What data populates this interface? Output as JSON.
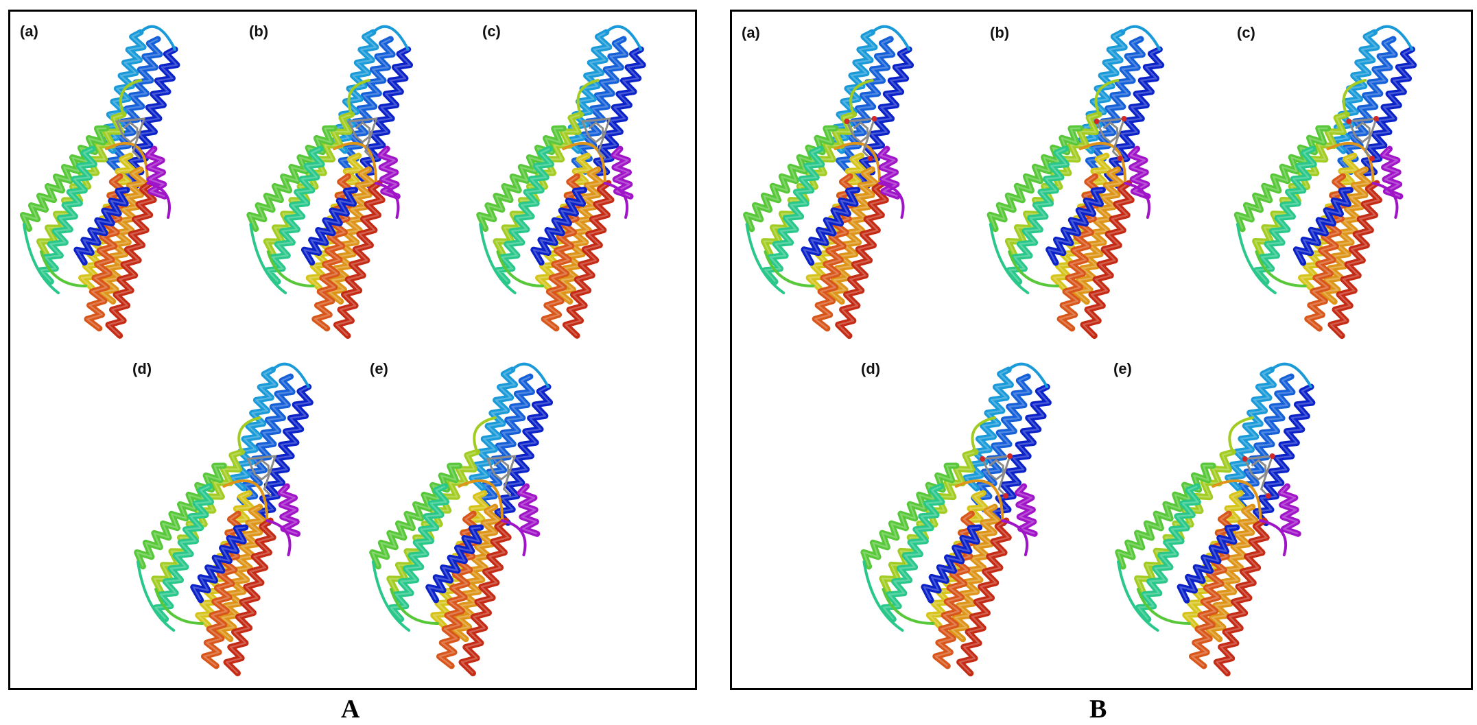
{
  "figure": {
    "panels": [
      {
        "id": "A",
        "label": "A",
        "structures": [
          {
            "label": "(a)",
            "icon": "protein-ribbon-structure"
          },
          {
            "label": "(b)",
            "icon": "protein-ribbon-structure"
          },
          {
            "label": "(c)",
            "icon": "protein-ribbon-structure"
          },
          {
            "label": "(d)",
            "icon": "protein-ribbon-structure"
          },
          {
            "label": "(e)",
            "icon": "protein-ribbon-structure"
          }
        ]
      },
      {
        "id": "B",
        "label": "B",
        "structures": [
          {
            "label": "(a)",
            "icon": "protein-ribbon-structure"
          },
          {
            "label": "(b)",
            "icon": "protein-ribbon-structure"
          },
          {
            "label": "(c)",
            "icon": "protein-ribbon-structure"
          },
          {
            "label": "(d)",
            "icon": "protein-ribbon-structure"
          },
          {
            "label": "(e)",
            "icon": "protein-ribbon-structure"
          }
        ]
      }
    ],
    "colors": {
      "rainbow": [
        "#0a22c8",
        "#1560d8",
        "#1a9ad8",
        "#1fc6cc",
        "#29c78a",
        "#58c83a",
        "#a2cc22",
        "#d6c41c",
        "#dd9418",
        "#d8561a",
        "#c42a14"
      ],
      "n_terminal_helix": "#a014c8",
      "ligand": "#8a8a8a",
      "ligand_oxygen": "#d22828"
    }
  }
}
